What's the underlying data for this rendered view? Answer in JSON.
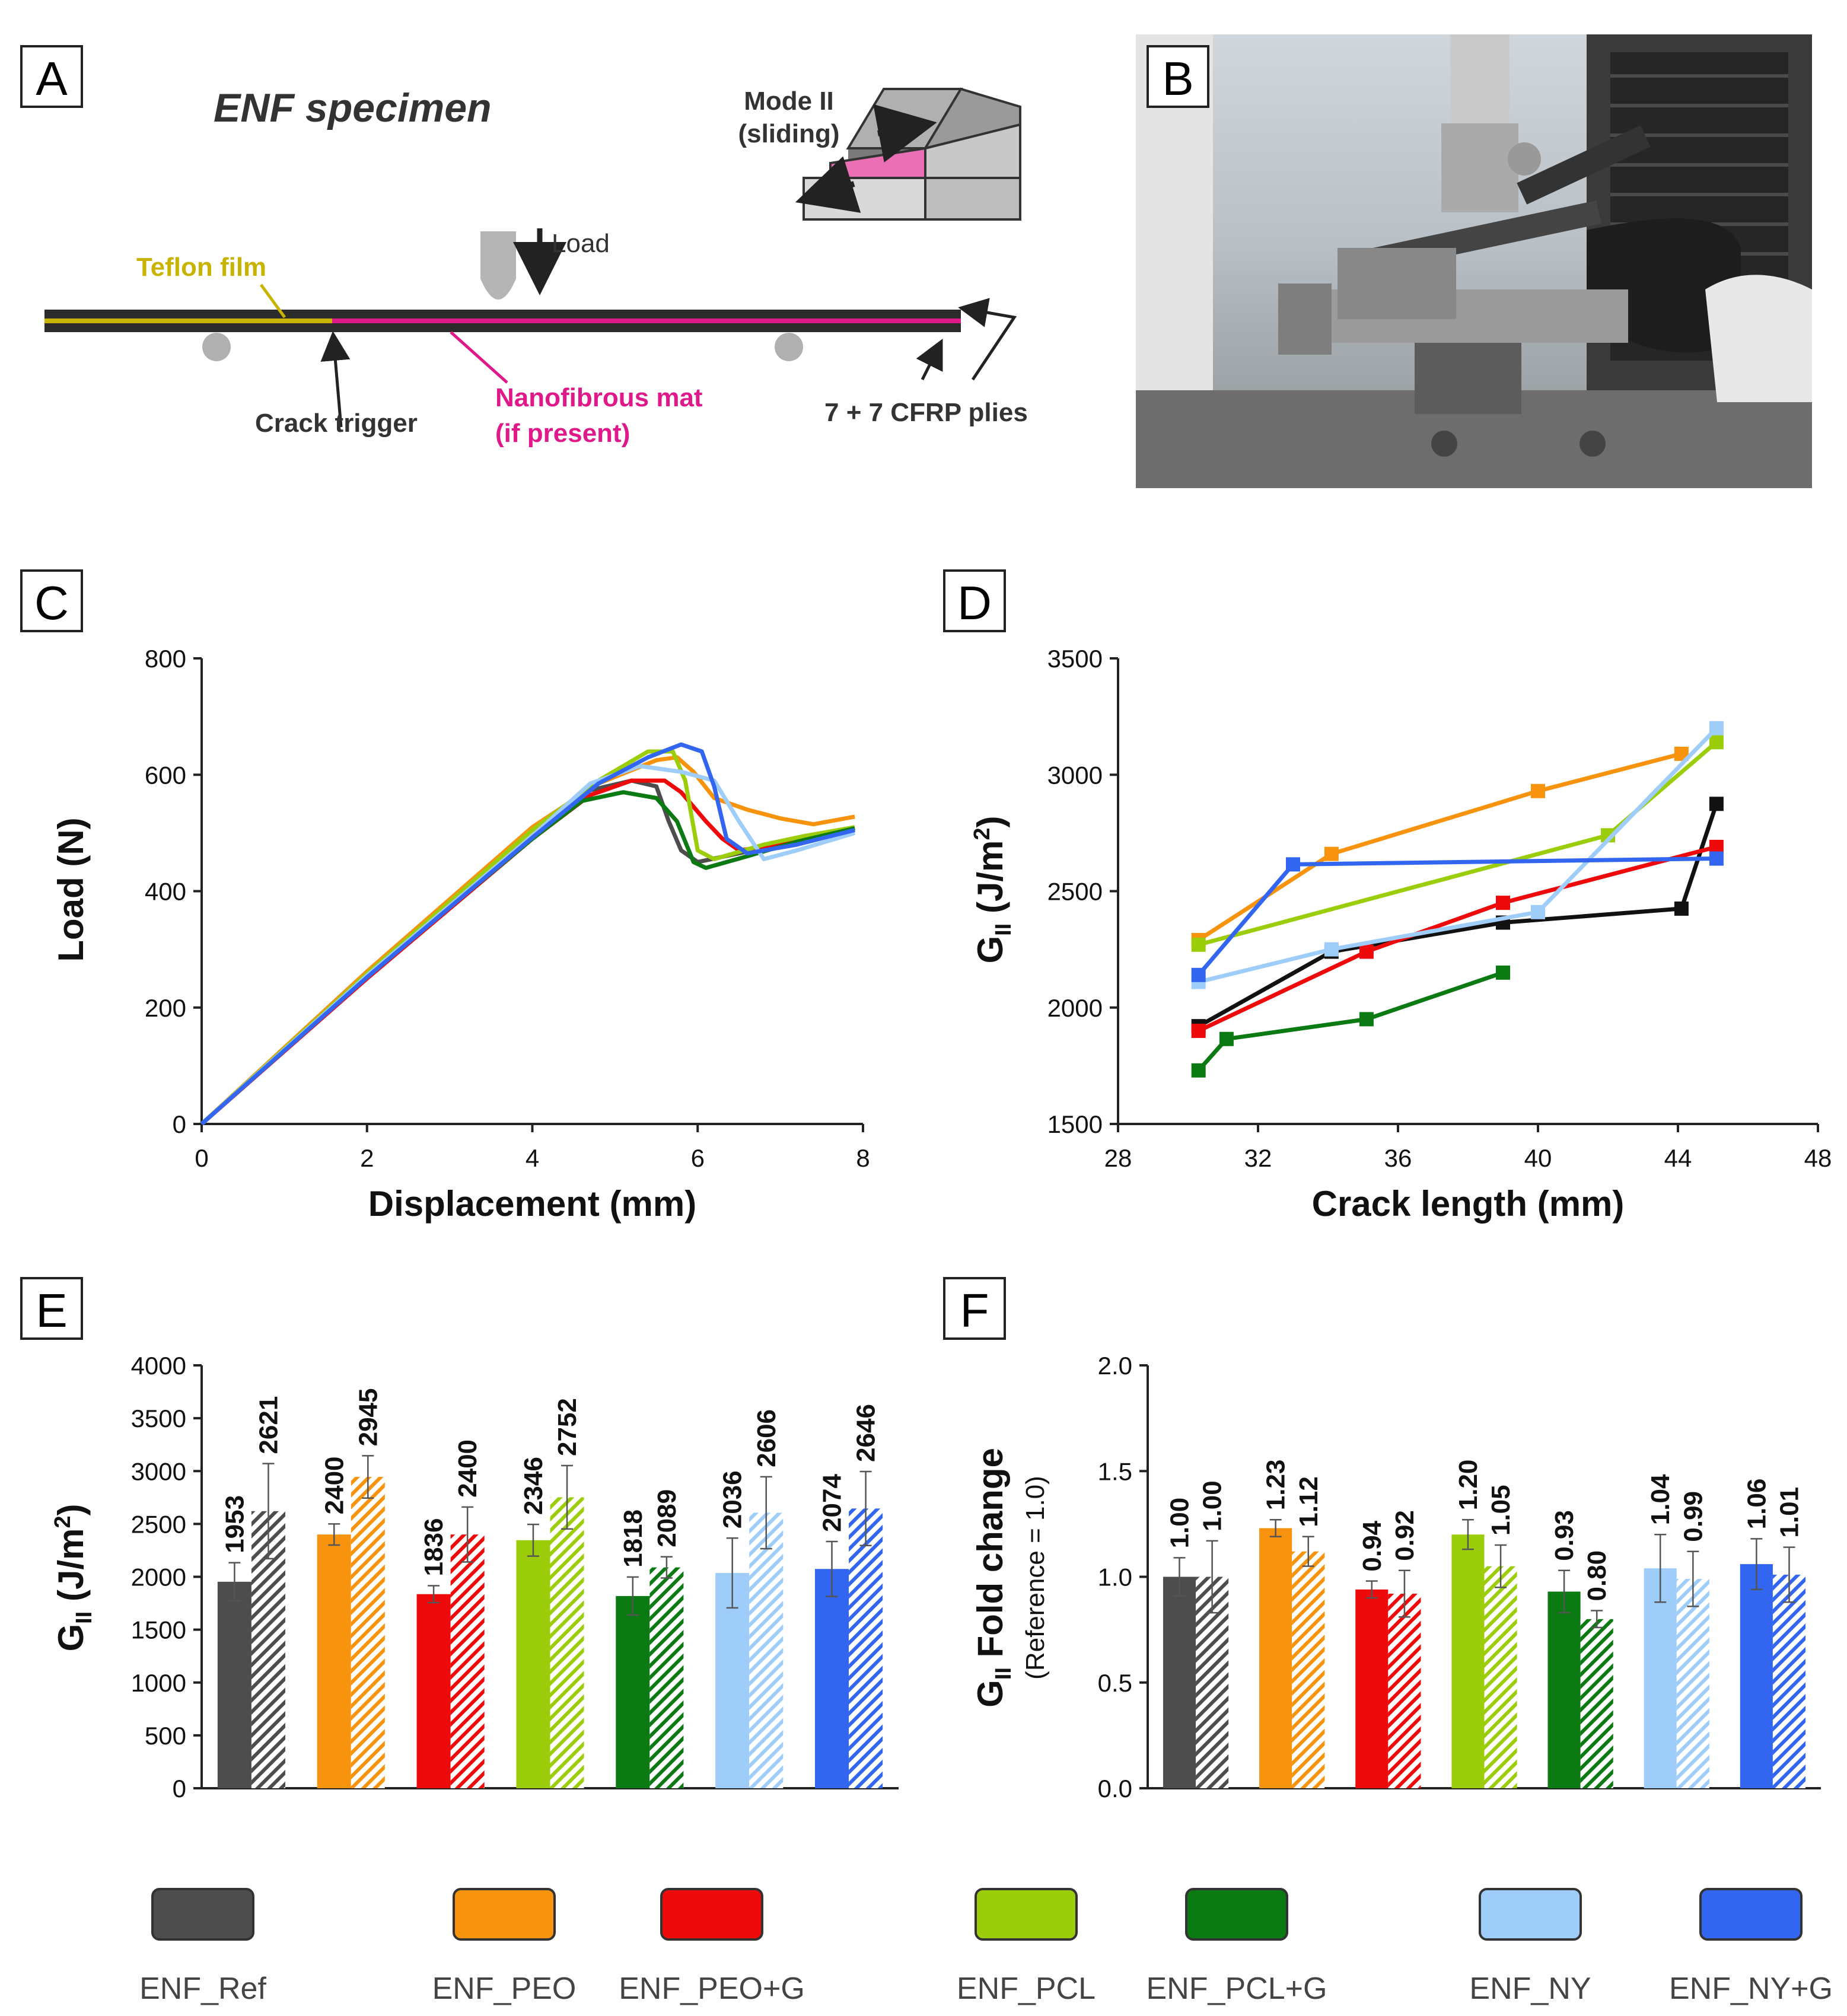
{
  "figure": {
    "panel_letters": [
      "A",
      "B",
      "C",
      "D",
      "E",
      "F"
    ]
  },
  "panel_a": {
    "title": "ENF specimen",
    "mode_label_1": "Mode II",
    "mode_label_2": "(sliding)",
    "load_label": "Load",
    "teflon_label": "Teflon film",
    "crack_label": "Crack trigger",
    "mat_label_1": "Nanofibrous mat",
    "mat_label_2": "(if present)",
    "plies_label": "7 + 7 CFRP plies",
    "colors": {
      "teflon": "#c8b400",
      "mat": "#e0198a",
      "laminate": "#2b2b2b"
    }
  },
  "panel_b": {
    "description_icon": "test-rig-photo-icon"
  },
  "legend": {
    "items": [
      {
        "label": "ENF_Ref",
        "color": "#4d4d4d"
      },
      {
        "label": "ENF_PEO",
        "color": "#f7930d"
      },
      {
        "label": "ENF_PEO+G",
        "color": "#ee0a0a"
      },
      {
        "label": "ENF_PCL",
        "color": "#9ccd0b"
      },
      {
        "label": "ENF_PCL+G",
        "color": "#0b7a12"
      },
      {
        "label": "ENF_NY",
        "color": "#9fcdfa"
      },
      {
        "label": "ENF_NY+G",
        "color": "#3366f0"
      }
    ]
  },
  "chart_data": [
    {
      "panel": "C",
      "type": "line",
      "xlabel": "Displacement (mm)",
      "ylabel": "Load (N)",
      "xlim": [
        0,
        8
      ],
      "ylim": [
        0,
        800
      ],
      "xticks": [
        0,
        2,
        4,
        6,
        8
      ],
      "yticks": [
        0,
        200,
        400,
        600,
        800
      ],
      "series": [
        {
          "name": "ENF_Ref",
          "color": "#4d4d4d",
          "points": [
            [
              0,
              0
            ],
            [
              2,
              255
            ],
            [
              4,
              495
            ],
            [
              4.6,
              570
            ],
            [
              5.2,
              590
            ],
            [
              5.5,
              580
            ],
            [
              5.65,
              520
            ],
            [
              5.8,
              470
            ],
            [
              6.0,
              450
            ],
            [
              6.5,
              465
            ],
            [
              7.0,
              480
            ],
            [
              7.9,
              505
            ]
          ]
        },
        {
          "name": "ENF_PEO",
          "color": "#f7930d",
          "points": [
            [
              0,
              0
            ],
            [
              2,
              262
            ],
            [
              4,
              510
            ],
            [
              4.8,
              585
            ],
            [
              5.5,
              625
            ],
            [
              5.75,
              630
            ],
            [
              5.95,
              605
            ],
            [
              6.2,
              560
            ],
            [
              6.6,
              540
            ],
            [
              7.0,
              525
            ],
            [
              7.4,
              515
            ],
            [
              7.9,
              528
            ]
          ]
        },
        {
          "name": "ENF_PEO+G",
          "color": "#ee0a0a",
          "points": [
            [
              0,
              0
            ],
            [
              2,
              250
            ],
            [
              4,
              490
            ],
            [
              4.7,
              565
            ],
            [
              5.2,
              590
            ],
            [
              5.6,
              590
            ],
            [
              5.8,
              570
            ],
            [
              6.1,
              520
            ],
            [
              6.3,
              490
            ],
            [
              6.5,
              470
            ],
            [
              7.0,
              480
            ],
            [
              7.9,
              505
            ]
          ]
        },
        {
          "name": "ENF_PCL",
          "color": "#9ccd0b",
          "points": [
            [
              0,
              0
            ],
            [
              2,
              258
            ],
            [
              4,
              505
            ],
            [
              4.8,
              590
            ],
            [
              5.4,
              640
            ],
            [
              5.7,
              640
            ],
            [
              5.85,
              590
            ],
            [
              6.0,
              470
            ],
            [
              6.2,
              455
            ],
            [
              6.8,
              480
            ],
            [
              7.3,
              495
            ],
            [
              7.9,
              510
            ]
          ]
        },
        {
          "name": "ENF_PCL+G",
          "color": "#0b7a12",
          "points": [
            [
              0,
              0
            ],
            [
              2,
              255
            ],
            [
              4,
              490
            ],
            [
              4.6,
              555
            ],
            [
              5.1,
              570
            ],
            [
              5.5,
              560
            ],
            [
              5.75,
              520
            ],
            [
              5.95,
              450
            ],
            [
              6.1,
              440
            ],
            [
              6.6,
              460
            ],
            [
              7.2,
              485
            ],
            [
              7.9,
              508
            ]
          ]
        },
        {
          "name": "ENF_NY",
          "color": "#9fcdfa",
          "points": [
            [
              0,
              0
            ],
            [
              2,
              255
            ],
            [
              4,
              495
            ],
            [
              4.7,
              585
            ],
            [
              5.3,
              615
            ],
            [
              5.8,
              605
            ],
            [
              6.2,
              590
            ],
            [
              6.5,
              520
            ],
            [
              6.8,
              455
            ],
            [
              7.2,
              470
            ],
            [
              7.9,
              500
            ]
          ]
        },
        {
          "name": "ENF_NY+G",
          "color": "#3366f0",
          "points": [
            [
              0,
              0
            ],
            [
              2,
              252
            ],
            [
              4,
              492
            ],
            [
              4.8,
              585
            ],
            [
              5.4,
              630
            ],
            [
              5.8,
              652
            ],
            [
              6.05,
              640
            ],
            [
              6.2,
              580
            ],
            [
              6.35,
              490
            ],
            [
              6.6,
              465
            ],
            [
              7.2,
              480
            ],
            [
              7.9,
              505
            ]
          ]
        }
      ]
    },
    {
      "panel": "D",
      "type": "line",
      "xlabel": "Crack length (mm)",
      "ylabel": "G_II (J/m2)",
      "xlim": [
        28,
        48
      ],
      "ylim": [
        1500,
        3500
      ],
      "xticks": [
        28,
        32,
        36,
        40,
        44,
        48
      ],
      "yticks": [
        1500,
        2000,
        2500,
        3000,
        3500
      ],
      "series": [
        {
          "name": "ENF_Ref",
          "color": "#111111",
          "points": [
            [
              30.3,
              1920
            ],
            [
              34.1,
              2240
            ],
            [
              39.0,
              2365
            ],
            [
              44.1,
              2425
            ],
            [
              45.1,
              2875
            ]
          ]
        },
        {
          "name": "ENF_PEO",
          "color": "#f7930d",
          "points": [
            [
              30.3,
              2290
            ],
            [
              34.1,
              2660
            ],
            [
              40.0,
              2930
            ],
            [
              44.1,
              3090
            ]
          ]
        },
        {
          "name": "ENF_PEO+G",
          "color": "#ee0a0a",
          "points": [
            [
              30.3,
              1900
            ],
            [
              35.1,
              2240
            ],
            [
              39.0,
              2450
            ],
            [
              45.1,
              2690
            ]
          ]
        },
        {
          "name": "ENF_PCL",
          "color": "#9ccd0b",
          "points": [
            [
              30.3,
              2270
            ],
            [
              42.0,
              2740
            ],
            [
              45.1,
              3140
            ]
          ]
        },
        {
          "name": "ENF_PCL+G",
          "color": "#0b7a12",
          "points": [
            [
              30.3,
              1730
            ],
            [
              31.1,
              1865
            ],
            [
              35.1,
              1950
            ],
            [
              39.0,
              2150
            ]
          ]
        },
        {
          "name": "ENF_NY",
          "color": "#9fcdfa",
          "points": [
            [
              30.3,
              2110
            ],
            [
              34.1,
              2250
            ],
            [
              40.0,
              2410
            ],
            [
              45.1,
              3200
            ]
          ]
        },
        {
          "name": "ENF_NY+G",
          "color": "#3366f0",
          "points": [
            [
              30.3,
              2140
            ],
            [
              33.0,
              2615
            ],
            [
              45.1,
              2640
            ]
          ]
        }
      ]
    },
    {
      "panel": "E",
      "type": "bar",
      "ylabel": "G_II (J/m2)",
      "ylim": [
        0,
        4000
      ],
      "yticks": [
        0,
        500,
        1000,
        1500,
        2000,
        2500,
        3000,
        3500,
        4000
      ],
      "categories": [
        "ENF_Ref",
        "ENF_PEO",
        "ENF_PEO+G",
        "ENF_PCL",
        "ENF_PCL+G",
        "ENF_NY",
        "ENF_NY+G"
      ],
      "series": [
        {
          "name": "solid",
          "values": [
            1953,
            2400,
            1836,
            2346,
            1818,
            2036,
            2074
          ],
          "errors": [
            180,
            100,
            80,
            150,
            180,
            330,
            260
          ]
        },
        {
          "name": "hatched",
          "values": [
            2621,
            2945,
            2400,
            2752,
            2089,
            2606,
            2646
          ],
          "errors": [
            450,
            200,
            260,
            300,
            100,
            340,
            350
          ]
        }
      ],
      "value_labels_solid": [
        "1953",
        "2400",
        "1836",
        "2346",
        "1818",
        "2036",
        "2074"
      ],
      "value_labels_hatched": [
        "2621",
        "2945",
        "2400",
        "2752",
        "2089",
        "2606",
        "2646"
      ]
    },
    {
      "panel": "F",
      "type": "bar",
      "ylabel": "G_II Fold change",
      "ylabel_sub": "(Reference = 1.0)",
      "ylim": [
        0,
        2
      ],
      "yticks": [
        0.0,
        0.5,
        1.0,
        1.5,
        2.0
      ],
      "ytick_labels": [
        "0.0",
        "0.5",
        "1.0",
        "1.5",
        "2.0"
      ],
      "categories": [
        "ENF_Ref",
        "ENF_PEO",
        "ENF_PEO+G",
        "ENF_PCL",
        "ENF_PCL+G",
        "ENF_NY",
        "ENF_NY+G"
      ],
      "series": [
        {
          "name": "solid",
          "values": [
            1.0,
            1.23,
            0.94,
            1.2,
            0.93,
            1.04,
            1.06
          ],
          "errors": [
            0.09,
            0.04,
            0.04,
            0.07,
            0.1,
            0.16,
            0.12
          ]
        },
        {
          "name": "hatched",
          "values": [
            1.0,
            1.12,
            0.92,
            1.05,
            0.8,
            0.99,
            1.01
          ],
          "errors": [
            0.17,
            0.07,
            0.11,
            0.1,
            0.04,
            0.13,
            0.13
          ]
        }
      ],
      "value_labels_solid": [
        "1.00",
        "1.23",
        "0.94",
        "1.20",
        "0.93",
        "1.04",
        "1.06"
      ],
      "value_labels_hatched": [
        "1.00",
        "1.12",
        "0.92",
        "1.05",
        "0.80",
        "0.99",
        "1.01"
      ]
    }
  ]
}
